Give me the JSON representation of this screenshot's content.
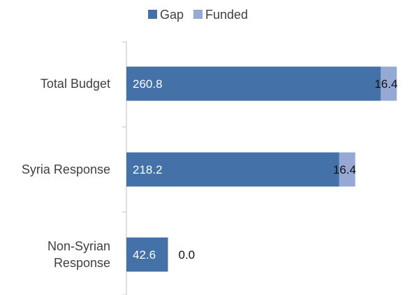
{
  "chart_data": {
    "type": "bar",
    "orientation": "horizontal",
    "stacked": true,
    "categories": [
      "Total Budget",
      "Syria Response",
      "Non-Syrian Response"
    ],
    "category_lines": [
      [
        "Total Budget"
      ],
      [
        "Syria Response"
      ],
      [
        "Non-Syrian",
        "Response"
      ]
    ],
    "series": [
      {
        "name": "Gap",
        "values": [
          260.8,
          218.2,
          42.6
        ],
        "color": "#4472a8"
      },
      {
        "name": "Funded",
        "values": [
          16.4,
          16.4,
          0.0
        ],
        "color": "#95a9d4"
      }
    ],
    "value_labels": [
      [
        "260.8",
        "218.2",
        "42.6"
      ],
      [
        "16.4",
        "16.4",
        "0.0"
      ]
    ],
    "legend_position": "top",
    "grid": false
  }
}
